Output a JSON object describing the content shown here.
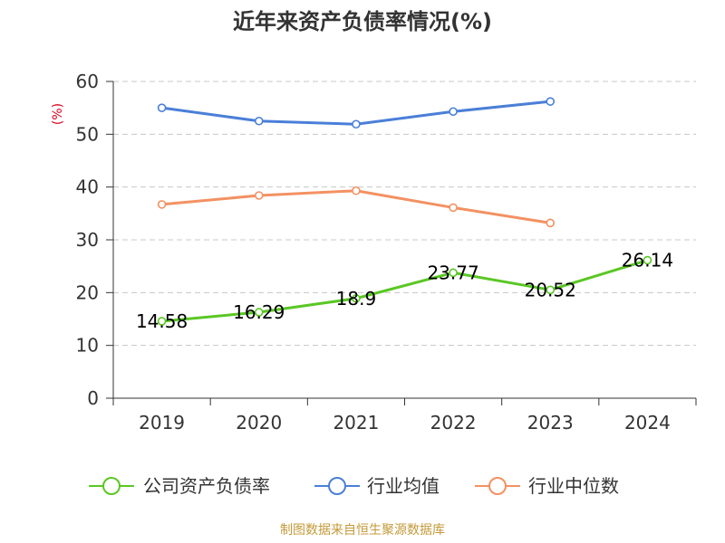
{
  "chart_data": {
    "type": "line",
    "title": "近年来资产负债率情况(%)",
    "unit_label": "(%)",
    "categories": [
      "2019",
      "2020",
      "2021",
      "2022",
      "2023",
      "2024"
    ],
    "y_ticks": [
      "0",
      "10",
      "20",
      "30",
      "40",
      "50",
      "60"
    ],
    "ylim": [
      0,
      60
    ],
    "grid": "horizontal dashed",
    "legend_position": "bottom",
    "series": [
      {
        "name": "公司资产负债率",
        "color": "#5ac724",
        "values": [
          14.58,
          16.29,
          18.9,
          23.77,
          20.52,
          26.14
        ],
        "labels": [
          "14.58",
          "16.29",
          "18.9",
          "23.77",
          "20.52",
          "26.14"
        ]
      },
      {
        "name": "行业均值",
        "color": "#4a7fd8",
        "values": [
          55.0,
          52.5,
          51.9,
          54.3,
          56.2,
          null
        ]
      },
      {
        "name": "行业中位数",
        "color": "#f39162",
        "values": [
          36.7,
          38.4,
          39.3,
          36.1,
          33.2,
          null
        ]
      }
    ]
  },
  "source": "制图数据来自恒生聚源数据库"
}
